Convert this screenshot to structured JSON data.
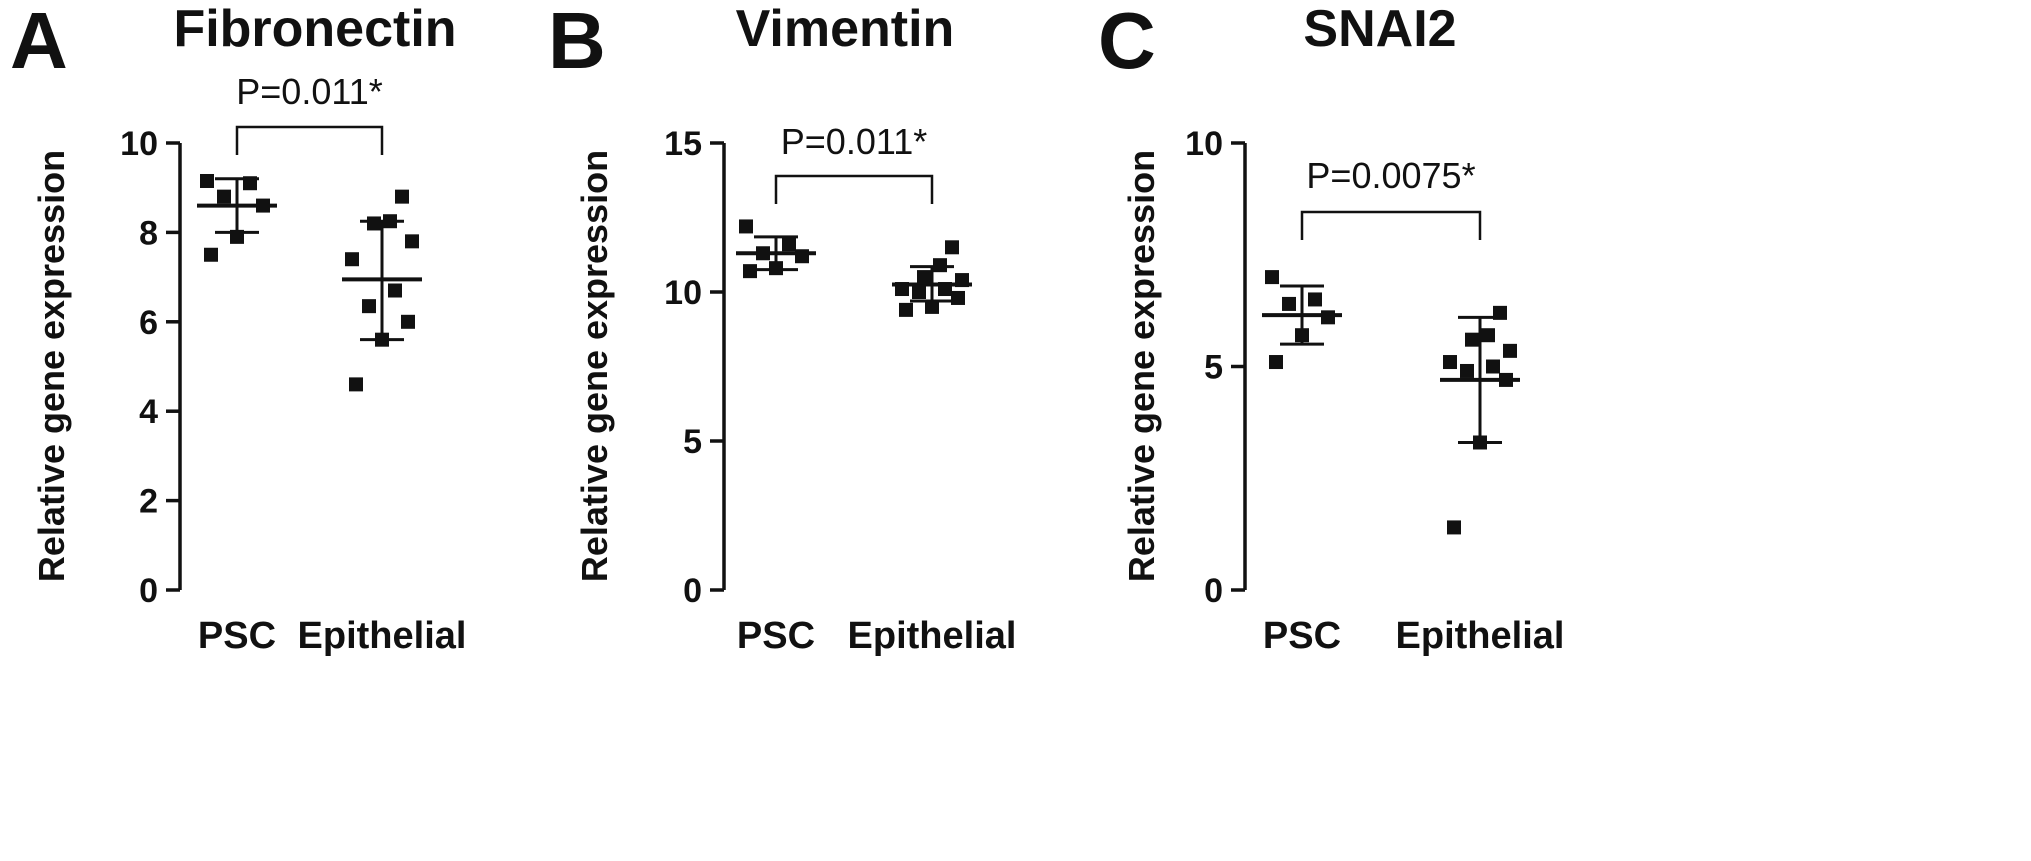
{
  "chart_data": [
    {
      "type": "scatter",
      "panel_label": "A",
      "title": "Fibronectin",
      "ylabel": "Relative gene expression",
      "xlabel": "",
      "categories": [
        "PSC",
        "Epithelial"
      ],
      "ylim": [
        0,
        10
      ],
      "yticks": [
        0,
        2,
        4,
        6,
        8,
        10
      ],
      "series": [
        {
          "category": "PSC",
          "points": [
            7.5,
            7.9,
            8.6,
            8.8,
            9.1,
            9.15
          ],
          "mean": 8.6,
          "error_low": 8.0,
          "error_high": 9.2
        },
        {
          "category": "Epithelial",
          "points": [
            4.6,
            5.6,
            6.0,
            6.35,
            6.7,
            7.4,
            7.8,
            8.2,
            8.25,
            8.8
          ],
          "mean": 6.95,
          "error_low": 5.6,
          "error_high": 8.25
        }
      ],
      "annotation": "P=0.011*"
    },
    {
      "type": "scatter",
      "panel_label": "B",
      "title": "Vimentin",
      "ylabel": "Relative gene expression",
      "xlabel": "",
      "categories": [
        "PSC",
        "Epithelial"
      ],
      "ylim": [
        0,
        15
      ],
      "yticks": [
        0,
        5,
        10,
        15
      ],
      "series": [
        {
          "category": "PSC",
          "points": [
            10.7,
            10.8,
            11.2,
            11.3,
            11.6,
            12.2
          ],
          "mean": 11.3,
          "error_low": 10.75,
          "error_high": 11.85
        },
        {
          "category": "Epithelial",
          "points": [
            9.4,
            9.5,
            9.8,
            10.0,
            10.1,
            10.1,
            10.4,
            10.5,
            10.9,
            11.5
          ],
          "mean": 10.25,
          "error_low": 9.7,
          "error_high": 10.85
        }
      ],
      "annotation": "P=0.011*"
    },
    {
      "type": "scatter",
      "panel_label": "C",
      "title": "SNAI2",
      "ylabel": "Relative gene expression",
      "xlabel": "",
      "categories": [
        "PSC",
        "Epithelial"
      ],
      "ylim": [
        0,
        10
      ],
      "yticks": [
        0,
        5,
        10
      ],
      "series": [
        {
          "category": "PSC",
          "points": [
            5.1,
            5.7,
            6.1,
            6.4,
            6.5,
            7.0
          ],
          "mean": 6.15,
          "error_low": 5.5,
          "error_high": 6.8
        },
        {
          "category": "Epithelial",
          "points": [
            1.4,
            3.3,
            4.7,
            4.9,
            5.0,
            5.1,
            5.35,
            5.6,
            5.7,
            6.2
          ],
          "mean": 4.7,
          "error_low": 3.3,
          "error_high": 6.1
        }
      ],
      "annotation": "P=0.0075*"
    }
  ]
}
